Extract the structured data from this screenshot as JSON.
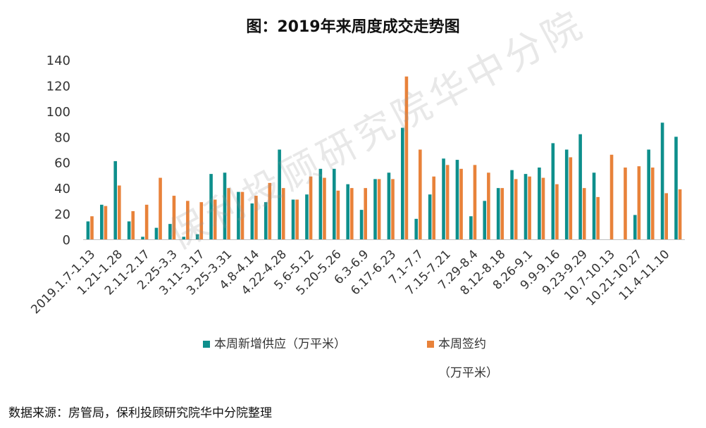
{
  "title": "图：2019年来周度成交走势图",
  "source": "数据来源：房管局，保利投顾研究院华中分院整理",
  "watermark": "保利投顾研究院华中分院",
  "colors": {
    "supply": "#0E8F8C",
    "signed": "#E8823A",
    "axis": "#bfbfbf"
  },
  "chart_data": {
    "type": "bar",
    "title": "图：2019年来周度成交走势图",
    "ylim": [
      0,
      140
    ],
    "yticks": [
      0,
      20,
      40,
      60,
      80,
      100,
      120,
      140
    ],
    "grid": false,
    "legend_position": "bottom",
    "x_tick_labels": [
      "2019.1.7-1.13",
      "1.21-1.28",
      "2.11-2.17",
      "2.25-3.3",
      "3.11-3.17",
      "3.25-3.31",
      "4.8-4.14",
      "4.22-4.28",
      "5.6-5.12",
      "5.20-5.26",
      "6.3-6.9",
      "6.17-6.23",
      "7.1-7.7",
      "7.15-7.21",
      "7.29-8.4",
      "8.12-8.18",
      "8.26-9.1",
      "9.9-9.16",
      "9.23-9.29",
      "10.7-10.13",
      "10.21-10.27",
      "11.4-11.10"
    ],
    "series": [
      {
        "name": "本周新增供应（万平米）",
        "values": [
          14,
          27,
          61,
          14,
          2,
          9,
          12,
          2,
          4,
          51,
          52,
          37,
          28,
          29,
          70,
          31,
          35,
          55,
          55,
          43,
          23,
          47,
          52,
          87,
          16,
          35,
          63,
          62,
          18,
          30,
          40,
          54,
          51,
          56,
          75,
          70,
          82,
          52,
          0,
          0,
          19,
          70,
          91,
          80
        ]
      },
      {
        "name": "本周签约",
        "name_line2": "（万平米）",
        "values": [
          18,
          26,
          42,
          22,
          27,
          48,
          34,
          30,
          29,
          31,
          40,
          37,
          34,
          44,
          40,
          31,
          49,
          48,
          38,
          40,
          40,
          47,
          47,
          127,
          70,
          49,
          58,
          55,
          58,
          52,
          40,
          47,
          49,
          48,
          43,
          64,
          40,
          33,
          66,
          56,
          57,
          56,
          36,
          39
        ]
      }
    ]
  }
}
